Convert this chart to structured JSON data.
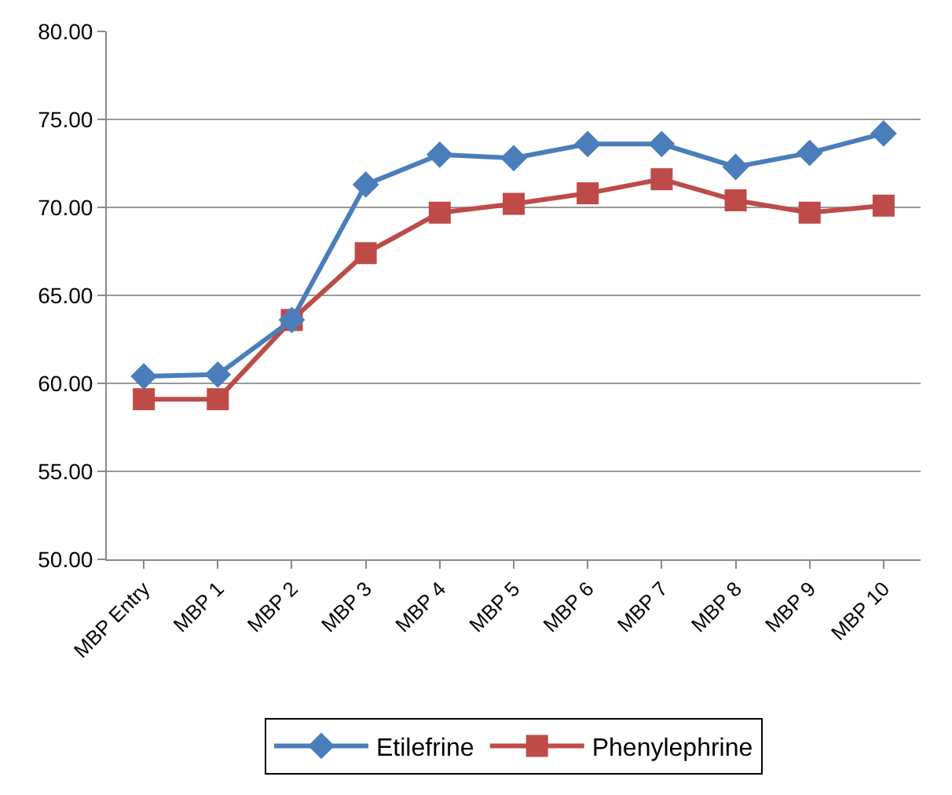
{
  "chart_data": {
    "type": "line",
    "categories": [
      "MBP Entry",
      "MBP 1",
      "MBP 2",
      "MBP 3",
      "MBP 4",
      "MBP 5",
      "MBP 6",
      "MBP 7",
      "MBP 8",
      "MBP 9",
      "MBP 10"
    ],
    "series": [
      {
        "name": "Etilefrine",
        "color": "#4a7ebb",
        "marker": "diamond",
        "values": [
          60.4,
          60.5,
          63.6,
          71.3,
          73.0,
          72.8,
          73.6,
          73.6,
          72.3,
          73.1,
          74.2
        ]
      },
      {
        "name": "Phenylephrine",
        "color": "#be4b48",
        "marker": "square",
        "values": [
          59.1,
          59.1,
          63.6,
          67.4,
          69.7,
          70.2,
          70.8,
          71.6,
          70.4,
          69.7,
          70.1
        ]
      }
    ],
    "ylim": [
      50,
      80
    ],
    "yticks": [
      {
        "value": 50,
        "label": "50.00"
      },
      {
        "value": 55,
        "label": "55.00"
      },
      {
        "value": 60,
        "label": "60.00"
      },
      {
        "value": 65,
        "label": "65.00"
      },
      {
        "value": 70,
        "label": "70.00"
      },
      {
        "value": 75,
        "label": "75.00"
      },
      {
        "value": 80,
        "label": "80.00"
      }
    ],
    "grid": "y",
    "legend": "bottom",
    "line_style": "solid"
  }
}
